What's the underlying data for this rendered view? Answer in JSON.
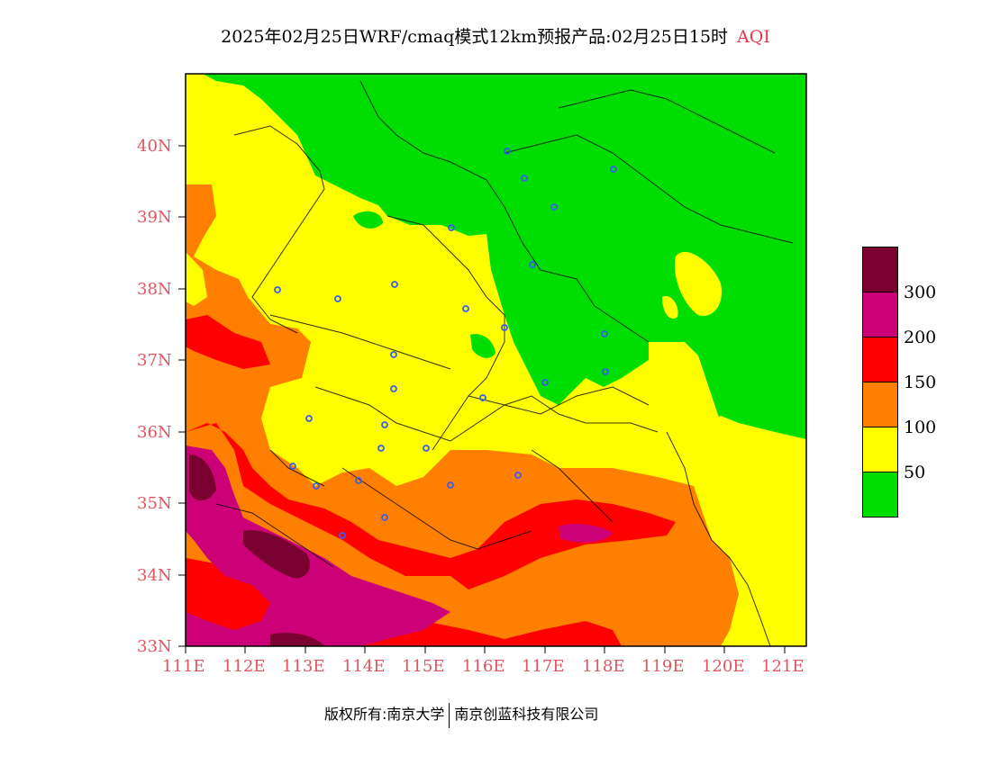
{
  "title": {
    "main": "2025年02月25日WRF/cmaq模式12km预报产品:02月25日15时",
    "variable": "AQI"
  },
  "colors": {
    "good": "#00dd00",
    "moderate": "#ffff00",
    "usg": "#ff8000",
    "unhealthy": "#ff0000",
    "very_unhealthy": "#cc0077",
    "hazardous": "#7a0030",
    "station": "#3a5ee8",
    "axis_text": "#e05560"
  },
  "map": {
    "lat_labels": [
      "40N",
      "39N",
      "38N",
      "37N",
      "36N",
      "35N",
      "34N",
      "33N"
    ],
    "lon_labels": [
      "111E",
      "112E",
      "113E",
      "114E",
      "115E",
      "116E",
      "117E",
      "118E",
      "119E",
      "120E",
      "121E"
    ]
  },
  "legend": {
    "labels": [
      "300",
      "200",
      "150",
      "100",
      "50"
    ]
  },
  "footer": {
    "left": "版权所有:南京大学",
    "right": "南京创蓝科技有限公司"
  }
}
